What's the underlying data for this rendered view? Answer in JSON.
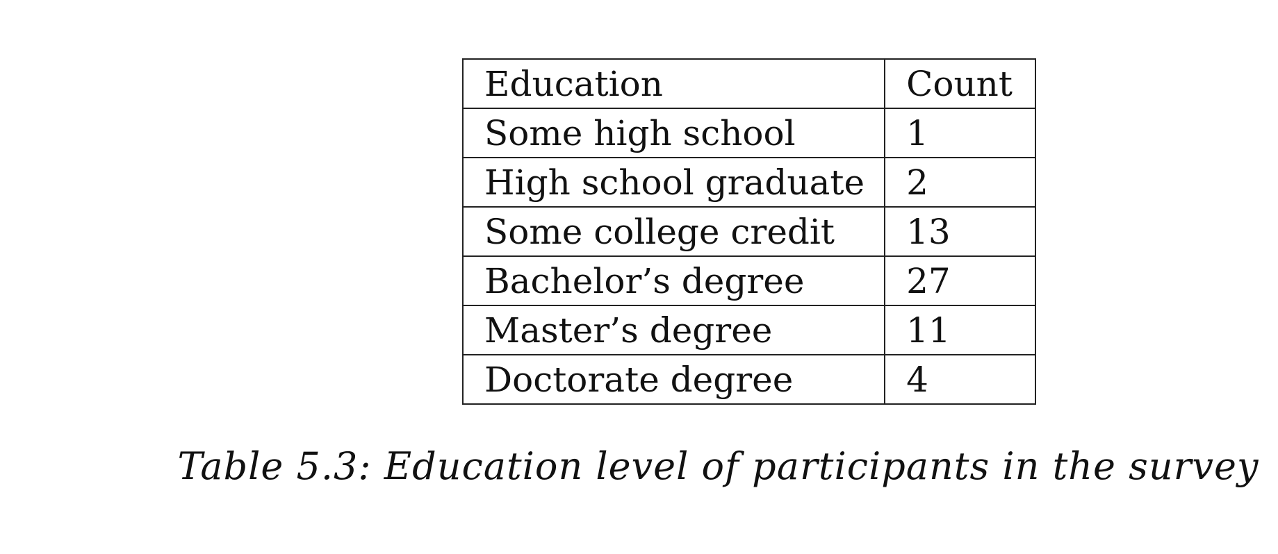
{
  "table": {
    "headers": [
      "Education",
      "Count"
    ],
    "rows": [
      {
        "education": "Some high school",
        "count": "1"
      },
      {
        "education": "High school graduate",
        "count": "2"
      },
      {
        "education": "Some college credit",
        "count": "13"
      },
      {
        "education": "Bachelor’s degree",
        "count": "27"
      },
      {
        "education": "Master’s degree",
        "count": "11"
      },
      {
        "education": "Doctorate degree",
        "count": "4"
      }
    ]
  },
  "caption": "Table 5.3: Education level of participants in the survey"
}
